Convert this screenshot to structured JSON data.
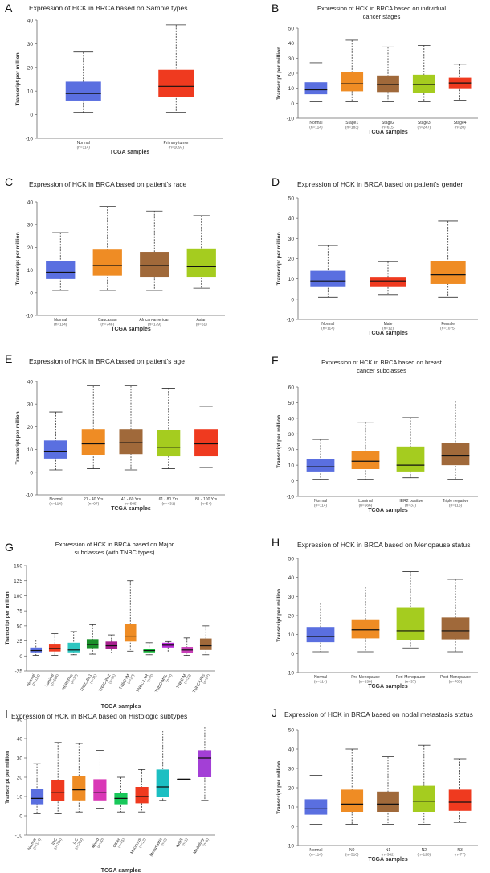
{
  "chart_data": [
    {
      "panel": "A",
      "type": "boxplot",
      "title": "Expression of HCK in BRCA based on Sample types",
      "xlabel": "TCGA samples",
      "ylabel": "Transcript per million",
      "ylim": [
        -10,
        40
      ],
      "yticks": [
        -10,
        0,
        10,
        20,
        30,
        40
      ],
      "categories": [
        {
          "name": "Normal",
          "n": "(n=114)",
          "color": "#5a6fe0",
          "stats": [
            1,
            6,
            9,
            14,
            26.5
          ]
        },
        {
          "name": "Primary tumor",
          "n": "(n=1097)",
          "color": "#ef3a1f",
          "stats": [
            1,
            7.5,
            12,
            19,
            38
          ]
        }
      ]
    },
    {
      "panel": "B",
      "type": "boxplot",
      "title": "Expression of HCK in BRCA based on individual cancer stages",
      "xlabel": "TCGA samples",
      "ylabel": "Transcript per million",
      "ylim": [
        -10,
        50
      ],
      "yticks": [
        -10,
        0,
        10,
        20,
        30,
        40,
        50
      ],
      "categories": [
        {
          "name": "Normal",
          "n": "(n=114)",
          "color": "#5a6fe0",
          "stats": [
            1,
            6,
            9,
            14,
            27
          ]
        },
        {
          "name": "Stage1",
          "n": "(n=183)",
          "color": "#ef8c24",
          "stats": [
            1,
            8,
            13,
            21,
            42
          ]
        },
        {
          "name": "Stage2",
          "n": "(n=615)",
          "color": "#a0693a",
          "stats": [
            1,
            7.5,
            12.5,
            18.5,
            37.5
          ]
        },
        {
          "name": "Stage3",
          "n": "(n=247)",
          "color": "#a5cc1f",
          "stats": [
            1,
            7,
            12.5,
            19,
            38.5
          ]
        },
        {
          "name": "Stage4",
          "n": "(n=20)",
          "color": "#ef3a1f",
          "stats": [
            2,
            10,
            13.5,
            17,
            26
          ]
        }
      ]
    },
    {
      "panel": "C",
      "type": "boxplot",
      "title": "Expression of HCK in BRCA based on patient's race",
      "xlabel": "TCGA samples",
      "ylabel": "Transcript per million",
      "ylim": [
        -10,
        40
      ],
      "yticks": [
        -10,
        0,
        10,
        20,
        30,
        40
      ],
      "categories": [
        {
          "name": "Normal",
          "n": "(n=114)",
          "color": "#5a6fe0",
          "stats": [
            1,
            6,
            9,
            14,
            26.5
          ]
        },
        {
          "name": "Caucasian",
          "n": "(n=748)",
          "color": "#ef8c24",
          "stats": [
            1,
            7.5,
            12,
            19,
            38
          ]
        },
        {
          "name": "African-american",
          "n": "(n=179)",
          "color": "#a0693a",
          "stats": [
            1,
            7,
            12,
            18,
            36
          ]
        },
        {
          "name": "Asian",
          "n": "(n=61)",
          "color": "#a5cc1f",
          "stats": [
            2,
            7,
            11.5,
            19.5,
            34
          ]
        }
      ]
    },
    {
      "panel": "D",
      "type": "boxplot",
      "title": "Expression of HCK in BRCA based on patient's gender",
      "xlabel": "TCGA samples",
      "ylabel": "Transcript per million",
      "ylim": [
        -10,
        50
      ],
      "yticks": [
        -10,
        0,
        10,
        20,
        30,
        40,
        50
      ],
      "categories": [
        {
          "name": "Normal",
          "n": "(n=114)",
          "color": "#5a6fe0",
          "stats": [
            1,
            6,
            9,
            14,
            26.5
          ]
        },
        {
          "name": "Male",
          "n": "(n=12)",
          "color": "#ef3a1f",
          "stats": [
            2,
            6,
            9,
            11,
            18.5
          ]
        },
        {
          "name": "Female",
          "n": "(n=1075)",
          "color": "#ef8c24",
          "stats": [
            1,
            7.5,
            12,
            19,
            38.5
          ]
        }
      ]
    },
    {
      "panel": "E",
      "type": "boxplot",
      "title": "Expression of HCK in BRCA based on patient's age",
      "xlabel": "TCGA samples",
      "ylabel": "Transcript per million",
      "ylim": [
        -10,
        40
      ],
      "yticks": [
        -10,
        0,
        10,
        20,
        30,
        40
      ],
      "categories": [
        {
          "name": "Normal",
          "n": "(n=114)",
          "color": "#5a6fe0",
          "stats": [
            1,
            6,
            9,
            14,
            26.5
          ]
        },
        {
          "name": "21 - 40 Yrs",
          "n": "(n=97)",
          "color": "#ef8c24",
          "stats": [
            1.5,
            7.5,
            12.5,
            19,
            38
          ]
        },
        {
          "name": "41 - 60 Yrs",
          "n": "(n=505)",
          "color": "#a0693a",
          "stats": [
            1,
            8,
            13,
            19,
            38
          ]
        },
        {
          "name": "61 - 80 Yrs",
          "n": "(n=431)",
          "color": "#a5cc1f",
          "stats": [
            1.5,
            7,
            11,
            18.5,
            37
          ]
        },
        {
          "name": "81 - 100 Yrs",
          "n": "(n=54)",
          "color": "#ef3a1f",
          "stats": [
            2,
            7,
            12.5,
            19,
            29
          ]
        }
      ]
    },
    {
      "panel": "F",
      "type": "boxplot",
      "title": "Expression of HCK in BRCA based on breast cancer subclasses",
      "xlabel": "TCGA samples",
      "ylabel": "Transcript per million",
      "ylim": [
        -10,
        60
      ],
      "yticks": [
        -10,
        0,
        10,
        20,
        30,
        40,
        50,
        60
      ],
      "categories": [
        {
          "name": "Normal",
          "n": "(n=114)",
          "color": "#5a6fe0",
          "stats": [
            1,
            6,
            9,
            14,
            26.5
          ]
        },
        {
          "name": "Luminal",
          "n": "(n=566)",
          "color": "#ef8c24",
          "stats": [
            1,
            7.5,
            12.5,
            19,
            37.5
          ]
        },
        {
          "name": "HER2 positive",
          "n": "(n=37)",
          "color": "#a5cc1f",
          "stats": [
            2,
            6,
            10,
            22,
            40.5
          ]
        },
        {
          "name": "Triple negative",
          "n": "(n=116)",
          "color": "#a0693a",
          "stats": [
            1,
            10,
            16,
            24,
            51
          ]
        }
      ]
    },
    {
      "panel": "G",
      "type": "boxplot",
      "title": "Expression of HCK in BRCA based on Major subclasses (with TNBC types)",
      "xlabel": "TCGA samples",
      "ylabel": "Transcript per million",
      "ylim": [
        -25,
        150
      ],
      "yticks": [
        -25,
        0,
        25,
        50,
        75,
        100,
        125,
        150
      ],
      "categories": [
        {
          "name": "Normal",
          "n": "(n=114)",
          "color": "#5a6fe0",
          "stats": [
            1,
            6,
            9,
            14,
            26.5
          ]
        },
        {
          "name": "Luminal",
          "n": "(n=566)",
          "color": "#ef3a1f",
          "stats": [
            1,
            7.5,
            12.5,
            19,
            37
          ]
        },
        {
          "name": "HER2Pos",
          "n": "(n=37)",
          "color": "#2ec6c0",
          "stats": [
            2,
            6,
            10,
            22,
            40.5
          ]
        },
        {
          "name": "TNBC-BL1",
          "n": "(n=11)",
          "color": "#1a8f2a",
          "stats": [
            3,
            13,
            19,
            28,
            52
          ]
        },
        {
          "name": "TNBC-BL2",
          "n": "(n=11)",
          "color": "#a8208f",
          "stats": [
            5,
            12,
            17,
            24,
            35
          ]
        },
        {
          "name": "TNBC-IM",
          "n": "(n=20)",
          "color": "#ef8c24",
          "stats": [
            8,
            24,
            33,
            53,
            125
          ]
        },
        {
          "name": "TNBC-LAR",
          "n": "(n=8)",
          "color": "#18b83a",
          "stats": [
            2,
            6,
            9,
            12,
            22
          ]
        },
        {
          "name": "TNBC-MSL",
          "n": "(n=8)",
          "color": "#b82ad6",
          "stats": [
            5,
            14,
            18,
            22,
            24
          ]
        },
        {
          "name": "TNBC-M",
          "n": "(n=29)",
          "color": "#c83fb8",
          "stats": [
            1,
            5,
            10,
            15,
            30
          ]
        },
        {
          "name": "TNBC-UNS",
          "n": "(n=27)",
          "color": "#a0693a",
          "stats": [
            2,
            10,
            17,
            29,
            50
          ]
        }
      ]
    },
    {
      "panel": "H",
      "type": "boxplot",
      "title": "Expression of HCK in BRCA based on Menopause status",
      "xlabel": "TCGA samples",
      "ylabel": "Transcript per million",
      "ylim": [
        -10,
        50
      ],
      "yticks": [
        -10,
        0,
        10,
        20,
        30,
        40,
        50
      ],
      "categories": [
        {
          "name": "Normal",
          "n": "(n=114)",
          "color": "#5a6fe0",
          "stats": [
            1,
            6,
            9,
            14,
            26.5
          ]
        },
        {
          "name": "Pre-Menopause",
          "n": "(n=230)",
          "color": "#ef8c24",
          "stats": [
            1,
            8,
            12.5,
            18,
            35
          ]
        },
        {
          "name": "Peri-Menopause",
          "n": "(n=37)",
          "color": "#a5cc1f",
          "stats": [
            3,
            7,
            12,
            24,
            43
          ]
        },
        {
          "name": "Post-Menopause",
          "n": "(n=700)",
          "color": "#a0693a",
          "stats": [
            1,
            7.5,
            12,
            19,
            39
          ]
        }
      ]
    },
    {
      "panel": "I",
      "type": "boxplot",
      "title": "Expression of HCK in BRCA based on Histologic subtypes",
      "xlabel": "TCGA samples",
      "ylabel": "Transcript per million",
      "ylim": [
        -10,
        50
      ],
      "yticks": [
        -10,
        0,
        10,
        20,
        30,
        40,
        50
      ],
      "categories": [
        {
          "name": "Normal",
          "n": "(n=114)",
          "color": "#5a6fe0",
          "stats": [
            1,
            6,
            9,
            14,
            27
          ]
        },
        {
          "name": "IDC",
          "n": "(n=784)",
          "color": "#ef3a1f",
          "stats": [
            1,
            7.5,
            12,
            18.5,
            38
          ]
        },
        {
          "name": "ILC",
          "n": "(n=203)",
          "color": "#ef8c24",
          "stats": [
            2,
            8,
            13.5,
            20.5,
            37.5
          ]
        },
        {
          "name": "Mixed",
          "n": "(n=30)",
          "color": "#d938b6",
          "stats": [
            4,
            8,
            12,
            19,
            34
          ]
        },
        {
          "name": "Other",
          "n": "(n=45)",
          "color": "#18c85a",
          "stats": [
            2,
            6,
            9,
            12,
            20
          ]
        },
        {
          "name": "Mucinous",
          "n": "(n=17)",
          "color": "#ef3a1f",
          "stats": [
            2,
            6.5,
            10,
            15,
            24
          ]
        },
        {
          "name": "Metaplastic",
          "n": "(n=9)",
          "color": "#1cbfc2",
          "stats": [
            8,
            10,
            15,
            24,
            44
          ]
        },
        {
          "name": "IMDS",
          "n": "(n=1)",
          "color": "#000000",
          "stats": [
            19,
            19,
            19,
            19,
            19
          ]
        },
        {
          "name": "Medullary",
          "n": "(n=6)",
          "color": "#a33fd6",
          "stats": [
            8,
            20,
            30,
            34,
            46
          ]
        }
      ]
    },
    {
      "panel": "J",
      "type": "boxplot",
      "title": "Expression of HCK in BRCA based on nodal metastasis status",
      "xlabel": "TCGA samples",
      "ylabel": "Transcript per million",
      "ylim": [
        -10,
        50
      ],
      "yticks": [
        -10,
        0,
        10,
        20,
        30,
        40,
        50
      ],
      "categories": [
        {
          "name": "Normal",
          "n": "(n=114)",
          "color": "#5a6fe0",
          "stats": [
            1,
            6,
            9,
            14,
            26.5
          ]
        },
        {
          "name": "N0",
          "n": "(n=516)",
          "color": "#ef8c24",
          "stats": [
            1,
            7.5,
            11.5,
            19,
            40
          ]
        },
        {
          "name": "N1",
          "n": "(n=362)",
          "color": "#a0693a",
          "stats": [
            1,
            7.5,
            11.5,
            18,
            36
          ]
        },
        {
          "name": "N2",
          "n": "(n=120)",
          "color": "#a5cc1f",
          "stats": [
            1,
            7.5,
            13,
            21,
            42
          ]
        },
        {
          "name": "N3",
          "n": "(n=77)",
          "color": "#ef3a1f",
          "stats": [
            2,
            8,
            12.5,
            19,
            35
          ]
        }
      ]
    }
  ]
}
